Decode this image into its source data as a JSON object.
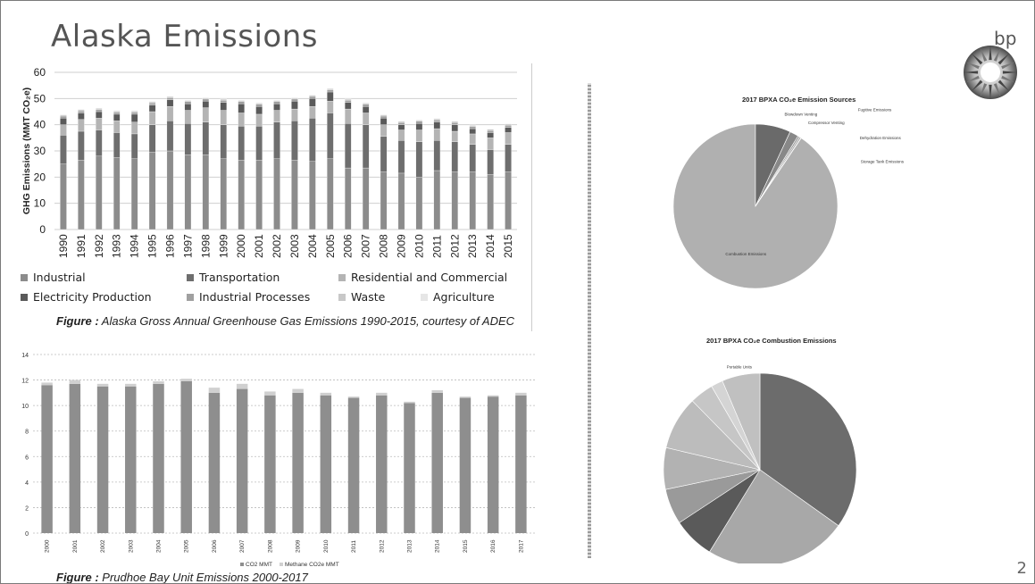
{
  "slide": {
    "title": "Alaska Emissions",
    "page_number": "2",
    "logo_text": "bp"
  },
  "figures": {
    "fig1": {
      "label": "Figure :",
      "text": " Alaska Gross Annual Greenhouse Gas Emissions 1990-2015, courtesy of ADEC"
    },
    "fig2": {
      "label": "Figure :",
      "text": " Prudhoe Bay Unit Emissions 2000-2017"
    }
  },
  "colors": {
    "industrial": "#8c8c8c",
    "transportation": "#6e6e6e",
    "residential": "#b4b4b4",
    "electricity": "#5a5a5a",
    "industrial_processes": "#a0a0a0",
    "waste": "#c8c8c8",
    "agriculture": "#e0e0e0",
    "co2": "#8e8e8e",
    "methane": "#d0d0d0"
  },
  "chart_data": [
    {
      "type": "bar",
      "stacked": true,
      "title": "",
      "ylabel": "GHG Emissions (MMT CO₂e)",
      "xlabel": "",
      "ylim": [
        0,
        60
      ],
      "yticks": [
        0,
        10,
        20,
        30,
        40,
        50,
        60
      ],
      "grid": true,
      "legend": "bottom",
      "categories": [
        "1990",
        "1991",
        "1992",
        "1993",
        "1994",
        "1995",
        "1996",
        "1997",
        "1998",
        "1999",
        "2000",
        "2001",
        "2002",
        "2003",
        "2004",
        "2005",
        "2006",
        "2007",
        "2008",
        "2009",
        "2010",
        "2011",
        "2012",
        "2013",
        "2014",
        "2015"
      ],
      "series": [
        {
          "name": "Industrial",
          "values": [
            25,
            26.5,
            28,
            27.5,
            27,
            29.5,
            30,
            28.5,
            28.5,
            27,
            26.5,
            26.5,
            27,
            26.5,
            26,
            27,
            23.5,
            23.5,
            22,
            21.5,
            20,
            22.5,
            22,
            22,
            21,
            22
          ]
        },
        {
          "name": "Transportation",
          "values": [
            11,
            11,
            10,
            9.5,
            9.5,
            10.5,
            11.5,
            12,
            12.5,
            13,
            13,
            13,
            14,
            15,
            16.5,
            17.5,
            17,
            16.5,
            13.5,
            12.5,
            13.5,
            11.5,
            11.5,
            10.5,
            9.5,
            10.5
          ]
        },
        {
          "name": "Residential and Commercial",
          "values": [
            4,
            4.5,
            4.5,
            4.5,
            4.5,
            5,
            5.5,
            5,
            5.5,
            5.5,
            5,
            4.5,
            4.5,
            4.5,
            4.5,
            4.5,
            5.5,
            4.5,
            4.5,
            4,
            4.5,
            4.5,
            4,
            4,
            4.5,
            4.5
          ]
        },
        {
          "name": "Electricity Production",
          "values": [
            2.5,
            2.5,
            2.5,
            2.5,
            3,
            2.5,
            2.5,
            2.5,
            2.5,
            3,
            3.5,
            3,
            2.5,
            3,
            3,
            3.5,
            2.5,
            2.5,
            2.5,
            2,
            2.5,
            2.5,
            2.5,
            2,
            2,
            2
          ]
        },
        {
          "name": "Industrial Processes",
          "values": [
            0.8,
            0.8,
            0.8,
            0.8,
            0.8,
            0.8,
            0.8,
            0.8,
            0.8,
            0.8,
            0.8,
            0.8,
            0.8,
            0.8,
            0.8,
            0.8,
            0.8,
            0.8,
            0.8,
            0.8,
            0.8,
            0.8,
            0.8,
            0.8,
            0.8,
            0.8
          ]
        },
        {
          "name": "Waste",
          "values": [
            0.5,
            0.5,
            0.5,
            0.5,
            0.5,
            0.5,
            0.5,
            0.5,
            0.5,
            0.5,
            0.5,
            0.5,
            0.5,
            0.5,
            0.5,
            0.5,
            0.5,
            0.5,
            0.5,
            0.5,
            0.5,
            0.5,
            0.5,
            0.5,
            0.5,
            0.5
          ]
        },
        {
          "name": "Agriculture",
          "values": [
            0.1,
            0.1,
            0.1,
            0.1,
            0.1,
            0.1,
            0.1,
            0.1,
            0.1,
            0.1,
            0.1,
            0.1,
            0.1,
            0.1,
            0.1,
            0.1,
            0.1,
            0.1,
            0.1,
            0.1,
            0.1,
            0.1,
            0.1,
            0.1,
            0.1,
            0.1
          ]
        }
      ]
    },
    {
      "type": "bar",
      "stacked": true,
      "title": "",
      "xlabel": "",
      "ylabel": "",
      "ylim": [
        0,
        14
      ],
      "yticks": [
        0,
        2,
        4,
        6,
        8,
        10,
        12,
        14
      ],
      "grid": true,
      "legend": "bottom",
      "categories": [
        "2000",
        "2001",
        "2002",
        "2003",
        "2004",
        "2005",
        "2006",
        "2007",
        "2008",
        "2009",
        "2010",
        "2011",
        "2012",
        "2013",
        "2014",
        "2015",
        "2016",
        "2017"
      ],
      "series": [
        {
          "name": "CO2 MMT",
          "values": [
            11.6,
            11.7,
            11.5,
            11.5,
            11.7,
            11.9,
            11.0,
            11.3,
            10.8,
            11.0,
            10.8,
            10.6,
            10.8,
            10.2,
            11.0,
            10.6,
            10.7,
            10.8
          ]
        },
        {
          "name": "Methane CO2e MMT",
          "values": [
            0.2,
            0.3,
            0.2,
            0.2,
            0.2,
            0.2,
            0.4,
            0.4,
            0.3,
            0.3,
            0.2,
            0.1,
            0.2,
            0.1,
            0.2,
            0.1,
            0.1,
            0.2
          ]
        }
      ]
    },
    {
      "type": "pie",
      "title": "2017 BPXA CO₂e Emission Sources",
      "slices": [
        {
          "label": "Combustion Emissions",
          "value": 88
        },
        {
          "label": "Blowdown Venting",
          "value": 6.73
        },
        {
          "label": "Compressor Venting",
          "value": 1.68
        },
        {
          "label": "Fugitive Emissions",
          "value": 0.34
        },
        {
          "label": "Dehydration Emissions",
          "value": 0.33
        },
        {
          "label": "Storage Tank Emissions",
          "value": 0.05
        }
      ]
    },
    {
      "type": "pie",
      "title": "2017 BPXA CO₂e Combustion Emissions",
      "slices": [
        {
          "label": "",
          "value": 35
        },
        {
          "label": "",
          "value": 24
        },
        {
          "label": "",
          "value": 7
        },
        {
          "label": "",
          "value": 6
        },
        {
          "label": "",
          "value": 7
        },
        {
          "label": "",
          "value": 9
        },
        {
          "label": "",
          "value": 4
        },
        {
          "label": "",
          "value": 2
        },
        {
          "label": "Portable Units",
          "value": 6.4
        }
      ]
    }
  ]
}
